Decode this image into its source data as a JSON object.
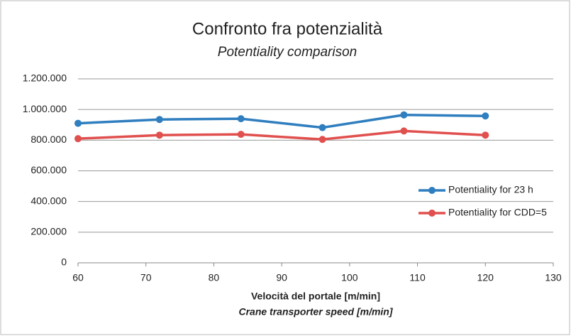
{
  "chart_data": {
    "type": "line",
    "title": "Confronto fra potenzialità",
    "subtitle": "Potentiality comparison",
    "xlabel": [
      "Velocità del portale [m/min]",
      "Crane transporter speed [m/min]"
    ],
    "x": [
      60,
      72,
      84,
      96,
      108,
      120
    ],
    "series": [
      {
        "name": "Potentiality for 23 h",
        "color": "#2f7ebf",
        "values": [
          910000,
          935000,
          940000,
          882000,
          965000,
          958000
        ]
      },
      {
        "name": "Potentiality for CDD=5",
        "color": "#e0504e",
        "values": [
          810000,
          833000,
          838000,
          805000,
          860000,
          833000
        ]
      }
    ],
    "xlim": [
      60,
      130
    ],
    "xticks": [
      60,
      70,
      80,
      90,
      100,
      110,
      120,
      130
    ],
    "ylim": [
      0,
      1200000
    ],
    "yticks": [
      0,
      {
        "value": 200000,
        "label": "200.000"
      },
      {
        "value": 400000,
        "label": "400.000"
      },
      {
        "value": 600000,
        "label": "600.000"
      },
      {
        "value": 800000,
        "label": "800.000"
      },
      {
        "value": 1000000,
        "label": "1.000.000"
      },
      {
        "value": 1200000,
        "label": "1.200.000"
      }
    ],
    "grid": true,
    "legend": "right"
  }
}
